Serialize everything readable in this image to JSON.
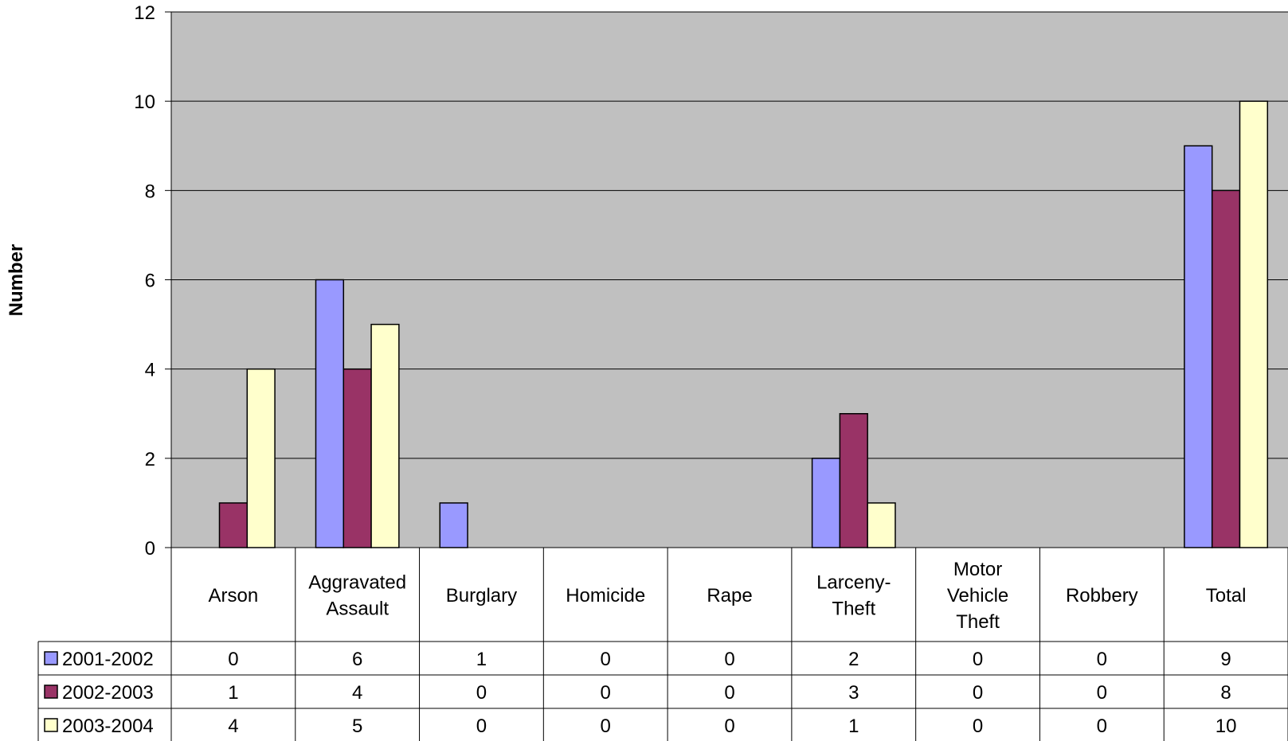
{
  "chart_data": {
    "type": "bar",
    "title": "",
    "xlabel": "",
    "ylabel": "Number",
    "ylim": [
      0,
      12
    ],
    "yticks": [
      "0",
      "2",
      "4",
      "6",
      "8",
      "10",
      "12"
    ],
    "grid": true,
    "legend": "data-table-left",
    "categories": [
      [
        "Arson"
      ],
      [
        "Aggravated",
        "Assault"
      ],
      [
        "Burglary"
      ],
      [
        "Homicide"
      ],
      [
        "Rape"
      ],
      [
        "Larceny-",
        "Theft"
      ],
      [
        "Motor",
        "Vehicle",
        "Theft"
      ],
      [
        "Robbery"
      ],
      [
        "Total"
      ]
    ],
    "series": [
      {
        "name": "2001-2002",
        "color": "#9999ff",
        "values": [
          0,
          6,
          1,
          0,
          0,
          2,
          0,
          0,
          9
        ]
      },
      {
        "name": "2002-2003",
        "color": "#993366",
        "values": [
          1,
          4,
          0,
          0,
          0,
          3,
          0,
          0,
          8
        ]
      },
      {
        "name": "2003-2004",
        "color": "#ffffcc",
        "values": [
          4,
          5,
          0,
          0,
          0,
          1,
          0,
          0,
          10
        ]
      }
    ],
    "plot_background": "#c0c0c0"
  }
}
